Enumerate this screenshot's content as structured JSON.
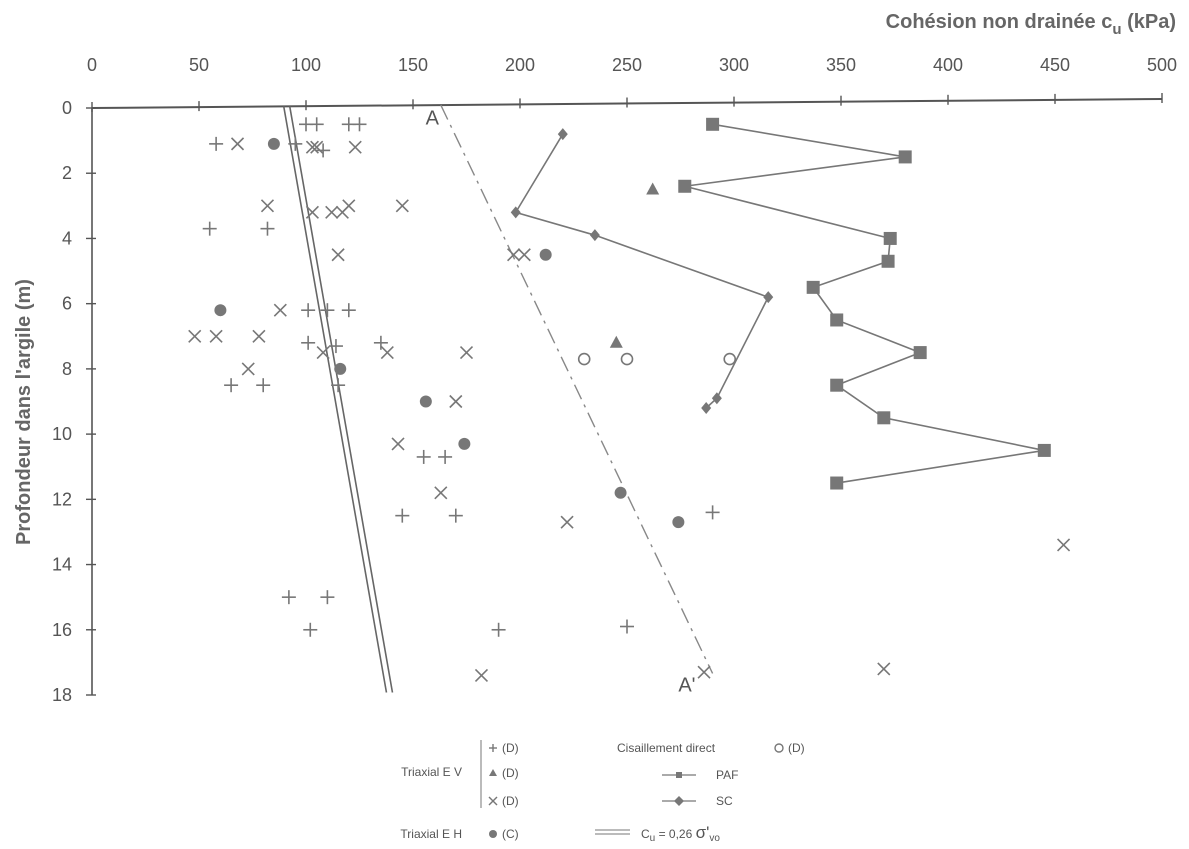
{
  "chart_data": {
    "type": "scatter",
    "xlabel": "Cohésion non drainée c",
    "xlabel_sub": "u",
    "xlabel_unit": "(kPa)",
    "ylabel": "Profondeur dans l'argile (m)",
    "xlim": [
      0,
      500
    ],
    "ylim": [
      0,
      18
    ],
    "x_ticks": [
      0,
      50,
      100,
      150,
      200,
      250,
      300,
      350,
      400,
      450,
      500
    ],
    "y_ticks": [
      0,
      2,
      4,
      6,
      8,
      10,
      12,
      14,
      16,
      18
    ],
    "grid": false,
    "colors": {
      "marker": "#777777",
      "line": "#777777",
      "axis": "#555555"
    },
    "series": [
      {
        "key": "tev_plus",
        "marker": "plus",
        "connected": false,
        "points": [
          [
            100,
            0.5
          ],
          [
            105,
            0.5
          ],
          [
            120,
            0.5
          ],
          [
            125,
            0.5
          ],
          [
            58,
            1.1
          ],
          [
            95,
            1.1
          ],
          [
            108,
            1.3
          ],
          [
            55,
            3.7
          ],
          [
            82,
            3.7
          ],
          [
            101,
            6.2
          ],
          [
            110,
            6.2
          ],
          [
            120,
            6.2
          ],
          [
            101,
            7.2
          ],
          [
            135,
            7.2
          ],
          [
            114,
            7.3
          ],
          [
            65,
            8.5
          ],
          [
            80,
            8.5
          ],
          [
            115,
            8.5
          ],
          [
            155,
            10.7
          ],
          [
            165,
            10.7
          ],
          [
            145,
            12.5
          ],
          [
            170,
            12.5
          ],
          [
            290,
            12.4
          ],
          [
            92,
            15
          ],
          [
            110,
            15
          ],
          [
            102,
            16
          ],
          [
            190,
            16
          ],
          [
            250,
            15.9
          ]
        ]
      },
      {
        "key": "tev_tri",
        "marker": "triangle",
        "connected": false,
        "points": [
          [
            262,
            2.5
          ],
          [
            245,
            7.2
          ]
        ]
      },
      {
        "key": "tev_x",
        "marker": "x",
        "connected": false,
        "points": [
          [
            68,
            1.1
          ],
          [
            103,
            1.2
          ],
          [
            105,
            1.2
          ],
          [
            123,
            1.2
          ],
          [
            82,
            3
          ],
          [
            103,
            3.2
          ],
          [
            112,
            3.2
          ],
          [
            117,
            3.2
          ],
          [
            120,
            3
          ],
          [
            145,
            3
          ],
          [
            115,
            4.5
          ],
          [
            197,
            4.5
          ],
          [
            202,
            4.5
          ],
          [
            48,
            7
          ],
          [
            58,
            7
          ],
          [
            78,
            7
          ],
          [
            88,
            6.2
          ],
          [
            73,
            8
          ],
          [
            108,
            7.5
          ],
          [
            138,
            7.5
          ],
          [
            175,
            7.5
          ],
          [
            170,
            9
          ],
          [
            143,
            10.3
          ],
          [
            163,
            11.8
          ],
          [
            222,
            12.7
          ],
          [
            454,
            13.4
          ],
          [
            182,
            17.4
          ],
          [
            286,
            17.3
          ],
          [
            370,
            17.2
          ]
        ]
      },
      {
        "key": "teh_c",
        "marker": "circle",
        "connected": false,
        "points": [
          [
            85,
            1.1
          ],
          [
            60,
            6.2
          ],
          [
            116,
            8
          ],
          [
            156,
            9
          ],
          [
            174,
            10.3
          ],
          [
            212,
            4.5
          ],
          [
            247,
            11.8
          ],
          [
            274,
            12.7
          ]
        ]
      },
      {
        "key": "cd_d",
        "marker": "open-circle",
        "connected": false,
        "points": [
          [
            230,
            7.7
          ],
          [
            250,
            7.7
          ],
          [
            298,
            7.7
          ]
        ]
      },
      {
        "key": "paf",
        "marker": "square",
        "connected": true,
        "points": [
          [
            290,
            0.5
          ],
          [
            380,
            1.5
          ],
          [
            277,
            2.4
          ],
          [
            373,
            4
          ],
          [
            372,
            4.7
          ],
          [
            337,
            5.5
          ],
          [
            348,
            6.5
          ],
          [
            387,
            7.5
          ],
          [
            348,
            8.5
          ],
          [
            370,
            9.5
          ],
          [
            445,
            10.5
          ],
          [
            348,
            11.5
          ]
        ]
      },
      {
        "key": "sc",
        "marker": "diamond",
        "connected": true,
        "points": [
          [
            220,
            0.8
          ],
          [
            198,
            3.2
          ],
          [
            235,
            3.9
          ],
          [
            316,
            5.8
          ],
          [
            292,
            8.9
          ],
          [
            287,
            9.2
          ]
        ]
      }
    ],
    "reference_lines": [
      {
        "key": "cu_line",
        "style": "double",
        "from": [
          91,
          0
        ],
        "to": [
          139,
          18
        ]
      },
      {
        "key": "aa_line",
        "style": "dashed",
        "from": [
          163,
          0
        ],
        "to": [
          290,
          17.5
        ]
      }
    ],
    "annotations": [
      {
        "key": "a",
        "text": "A",
        "at": [
          159,
          0.5
        ]
      },
      {
        "key": "a_prime",
        "text": "A'",
        "at": [
          278,
          17.9
        ]
      }
    ],
    "legend": {
      "position": "bottom",
      "triaxial_ev": "Triaxial  E V",
      "triaxial_eh": "Triaxial  E H",
      "plus_d": "(D)",
      "tri_d": "(D)",
      "x_d": "(D)",
      "circle_c": "(C)",
      "cisaillement": "Cisaillement direct",
      "open_d": "(D)",
      "paf": "PAF",
      "sc": "SC",
      "eq_cu": "C",
      "eq_sub_u": "u",
      "eq_mid": " = 0,26 ",
      "eq_sigma": "σ'",
      "eq_sub_vo": "vo"
    }
  }
}
